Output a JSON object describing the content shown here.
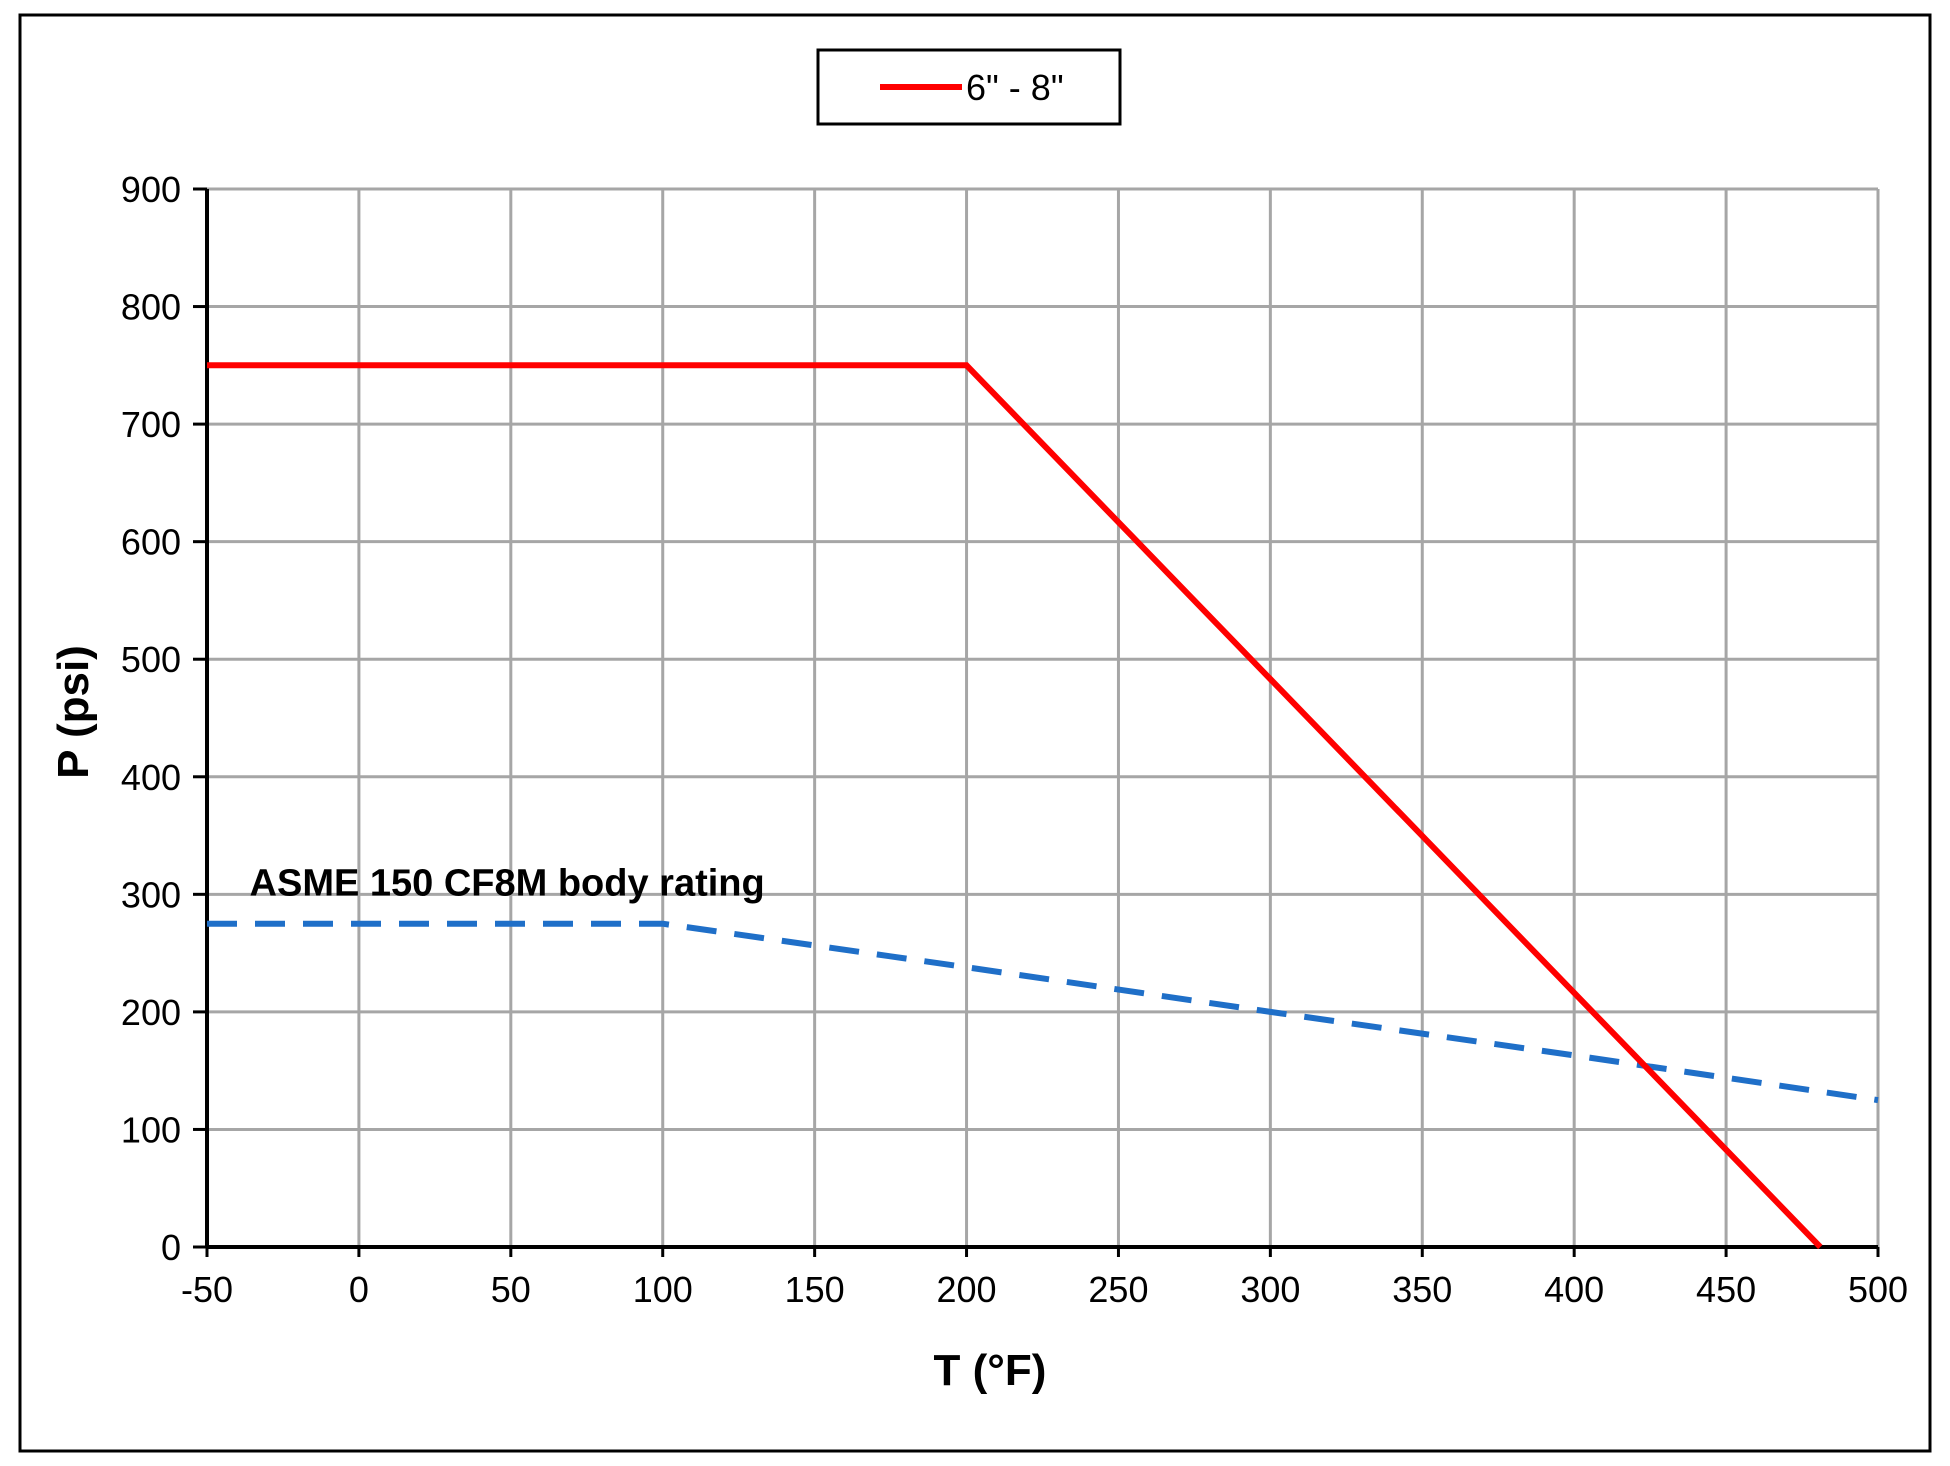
{
  "chart_data": {
    "type": "line",
    "xlabel": "T (°F)",
    "ylabel": "P (psi)",
    "xlim": [
      -50,
      500
    ],
    "ylim": [
      0,
      900
    ],
    "x_ticks": [
      -50,
      0,
      50,
      100,
      150,
      200,
      250,
      300,
      350,
      400,
      450,
      500
    ],
    "y_ticks": [
      0,
      100,
      200,
      300,
      400,
      500,
      600,
      700,
      800,
      900
    ],
    "grid": true,
    "legend": {
      "placement": "top-center",
      "entries": [
        "6\" - 8\""
      ]
    },
    "series": [
      {
        "name": "6\" - 8\"",
        "color": "#ff0000",
        "style": "solid",
        "x": [
          -50,
          200,
          481
        ],
        "y": [
          750,
          750,
          0
        ]
      },
      {
        "color": "#1f6fc8",
        "style": "dashed",
        "x": [
          -50,
          100,
          200,
          300,
          400,
          500
        ],
        "y": [
          275,
          275,
          238,
          200,
          163,
          125
        ]
      }
    ],
    "annotations": [
      {
        "text": "ASME 150 CF8M body rating",
        "x": -36,
        "y": 310
      }
    ]
  }
}
